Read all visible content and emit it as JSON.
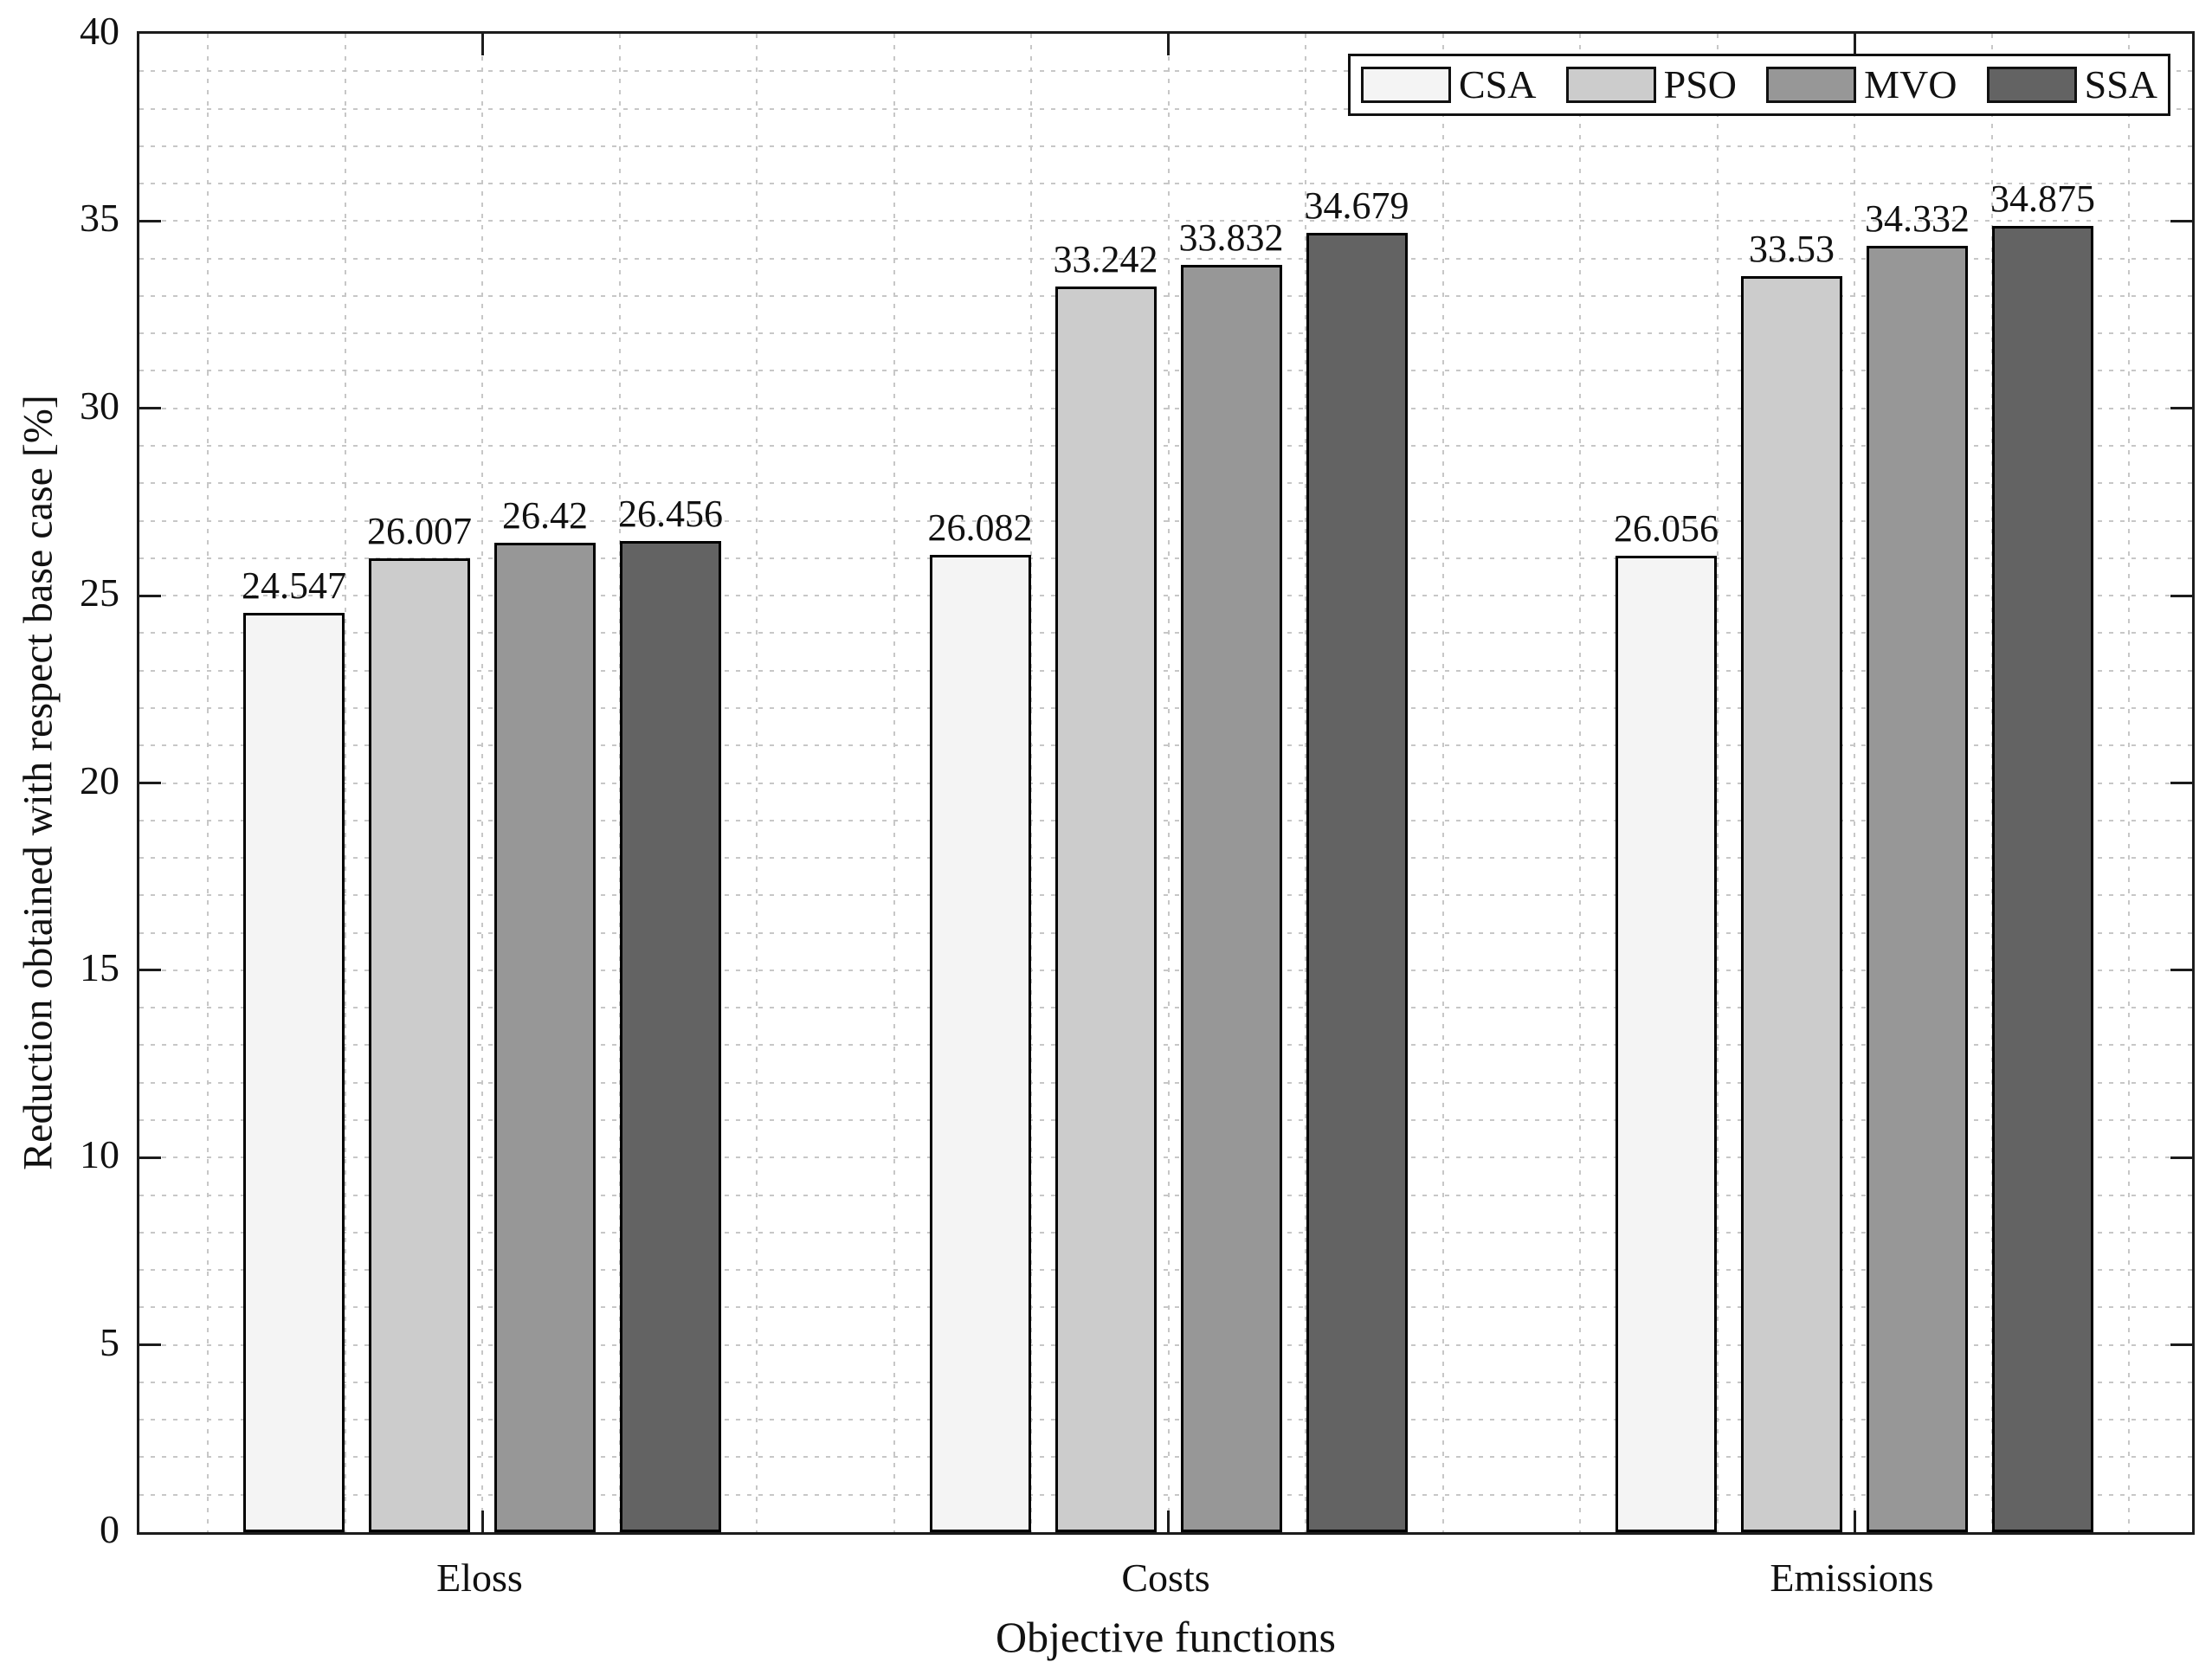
{
  "chart_data": {
    "type": "bar",
    "title": "",
    "categories": [
      "Eloss",
      "Costs",
      "Emissions"
    ],
    "series": [
      {
        "name": "CSA",
        "color": "#f4f4f4",
        "values": [
          24.547,
          26.082,
          26.056
        ],
        "value_labels": [
          "24.547",
          "26.082",
          "26.056"
        ]
      },
      {
        "name": "PSO",
        "color": "#cccccc",
        "values": [
          26.007,
          33.242,
          33.53
        ],
        "value_labels": [
          "26.007",
          "33.242",
          "33.53"
        ]
      },
      {
        "name": "MVO",
        "color": "#979797",
        "values": [
          26.42,
          33.832,
          34.332
        ],
        "value_labels": [
          "26.42",
          "33.832",
          "34.332"
        ]
      },
      {
        "name": "SSA",
        "color": "#636363",
        "values": [
          26.456,
          34.679,
          34.875
        ],
        "value_labels": [
          "26.456",
          "34.679",
          "34.875"
        ]
      }
    ],
    "xlabel": "Objective functions",
    "ylabel": "Reduction obtained with respect base case [%]",
    "ylim": [
      0,
      40
    ],
    "ytick_labels": [
      "0",
      "5",
      "10",
      "15",
      "20",
      "25",
      "30",
      "35",
      "40"
    ],
    "ytick_step": 5,
    "yminor_step": 1,
    "grid": "minor-dotted-both-axes",
    "legend": {
      "position": "top-right",
      "entries": [
        "CSA",
        "PSO",
        "MVO",
        "SSA"
      ]
    },
    "colors": {
      "bar_edge": "#000000",
      "axis": "#1c1c1c",
      "grid": "#c7c7c7",
      "text": "#111111",
      "background": "#ffffff"
    }
  }
}
